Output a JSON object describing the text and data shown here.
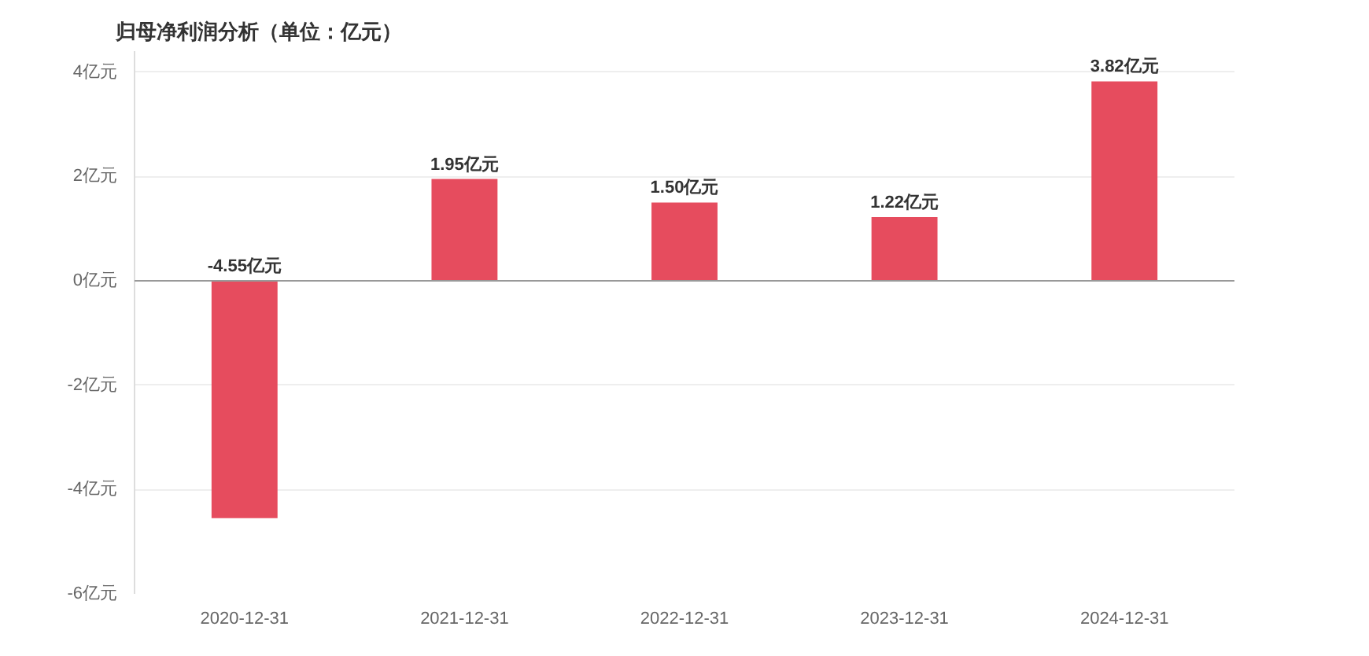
{
  "chart_data": {
    "type": "bar",
    "title": "归母净利润分析（单位：亿元）",
    "categories": [
      "2020-12-31",
      "2021-12-31",
      "2022-12-31",
      "2023-12-31",
      "2024-12-31"
    ],
    "values": [
      -4.55,
      1.95,
      1.5,
      1.22,
      3.82
    ],
    "value_labels": [
      "-4.55亿元",
      "1.95亿元",
      "1.50亿元",
      "1.22亿元",
      "3.82亿元"
    ],
    "color": "#e64c5e",
    "ylim": [
      -6,
      4.4
    ],
    "yticks": [
      {
        "value": -6,
        "label": "-6亿元"
      },
      {
        "value": -4,
        "label": "-4亿元"
      },
      {
        "value": -2,
        "label": "-2亿元"
      },
      {
        "value": 0,
        "label": "0亿元"
      },
      {
        "value": 2,
        "label": "2亿元"
      },
      {
        "value": 4,
        "label": "4亿元"
      }
    ],
    "grid": "y"
  }
}
